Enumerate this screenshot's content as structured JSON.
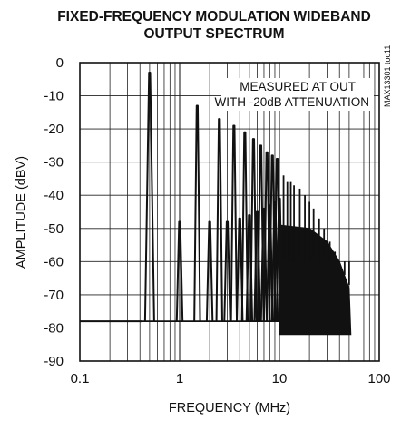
{
  "chart_data": {
    "type": "line",
    "title": [
      "FIXED-FREQUENCY MODULATION WIDEBAND",
      "OUTPUT SPECTRUM"
    ],
    "xlabel": "FREQUENCY (MHz)",
    "ylabel": "AMPLITUDE (dBV)",
    "xscale": "log",
    "xlim": [
      0.1,
      100
    ],
    "ylim": [
      -90,
      0
    ],
    "x_ticks": [
      "0.1",
      "1",
      "10",
      "100"
    ],
    "y_ticks": [
      "0",
      "-10",
      "-20",
      "-30",
      "-40",
      "-50",
      "-60",
      "-70",
      "-80",
      "-90"
    ],
    "grid": true,
    "annotation": [
      "MEASURED AT OUT__",
      "WITH -20dB ATTENUATION"
    ],
    "part_number": "MAX13301 toc11",
    "noise_floor_dbv": -78,
    "fundamental_mhz": 0.5,
    "harmonics": [
      {
        "freq": 0.5,
        "amplitude": -3
      },
      {
        "freq": 1.0,
        "amplitude": -48
      },
      {
        "freq": 1.5,
        "amplitude": -13
      },
      {
        "freq": 2.0,
        "amplitude": -48
      },
      {
        "freq": 2.5,
        "amplitude": -17
      },
      {
        "freq": 3.0,
        "amplitude": -48
      },
      {
        "freq": 3.5,
        "amplitude": -19
      },
      {
        "freq": 4.0,
        "amplitude": -47
      },
      {
        "freq": 4.5,
        "amplitude": -21
      },
      {
        "freq": 5.0,
        "amplitude": -46
      },
      {
        "freq": 5.5,
        "amplitude": -23
      },
      {
        "freq": 6.0,
        "amplitude": -45
      },
      {
        "freq": 6.5,
        "amplitude": -25
      },
      {
        "freq": 7.0,
        "amplitude": -44
      },
      {
        "freq": 7.5,
        "amplitude": -27
      },
      {
        "freq": 8.0,
        "amplitude": -43
      },
      {
        "freq": 8.5,
        "amplitude": -28
      },
      {
        "freq": 9.0,
        "amplitude": -42
      },
      {
        "freq": 9.5,
        "amplitude": -29
      },
      {
        "freq": 10.0,
        "amplitude": -41
      },
      {
        "freq": 11.0,
        "amplitude": -34
      },
      {
        "freq": 12.0,
        "amplitude": -36
      },
      {
        "freq": 13.0,
        "amplitude": -36
      },
      {
        "freq": 14.0,
        "amplitude": -37
      },
      {
        "freq": 16.0,
        "amplitude": -38
      },
      {
        "freq": 18.0,
        "amplitude": -40
      },
      {
        "freq": 20.0,
        "amplitude": -42
      },
      {
        "freq": 22.0,
        "amplitude": -44
      },
      {
        "freq": 25.0,
        "amplitude": -47
      },
      {
        "freq": 28.0,
        "amplitude": -50
      },
      {
        "freq": 32.0,
        "amplitude": -54
      },
      {
        "freq": 36.0,
        "amplitude": -57
      },
      {
        "freq": 40.0,
        "amplitude": -60
      },
      {
        "freq": 45.0,
        "amplitude": -64
      },
      {
        "freq": 50.0,
        "amplitude": -67
      }
    ],
    "dense_band": {
      "from_mhz": 10,
      "to_mhz": 52,
      "upper_envelope": [
        [
          10,
          -49
        ],
        [
          20,
          -50
        ],
        [
          30,
          -54
        ],
        [
          40,
          -60
        ],
        [
          50,
          -68
        ]
      ],
      "floor_dbv": -82
    }
  }
}
